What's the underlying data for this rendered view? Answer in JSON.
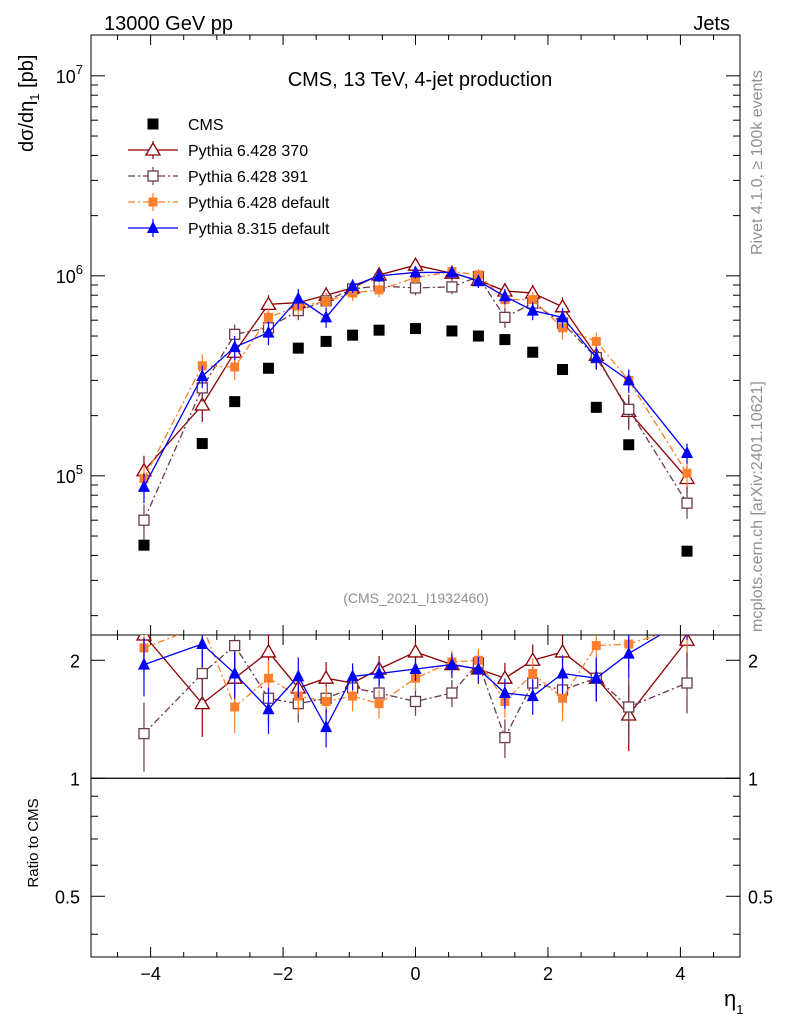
{
  "header": {
    "left": "13000 GeV pp",
    "right": "Jets"
  },
  "side": {
    "rivet": "Rivet 4.1.0, ≥ 100k events",
    "mcplots": "mcplots.cern.ch [arXiv:2401.10621]"
  },
  "chart_data": {
    "type": "scatter",
    "title": "CMS, 13 TeV, 4-jet production",
    "analysis_label": "(CMS_2021_I1932460)",
    "xlabel": "η",
    "xlabel_sub": "1",
    "ylabel": "dσ/dη",
    "ylabel_sub": "1",
    "ylabel_unit": " [pb]",
    "ratio_ylabel": "Ratio to CMS",
    "xlim": [
      -4.9,
      4.9
    ],
    "ylim": [
      16000,
      16000000
    ],
    "ratio_ylim": [
      0.35,
      2.32
    ],
    "x_ticks": [
      -4,
      -2,
      0,
      2,
      4
    ],
    "x_tick_labels": [
      "−4",
      "−2",
      "0",
      "2",
      "4"
    ],
    "y_ticks": [
      100000,
      1000000,
      10000000
    ],
    "y_tick_exponents": [
      "5",
      "6",
      "7"
    ],
    "ratio_ticks": [
      0.5,
      1,
      2
    ],
    "ratio_tick_labels": [
      "0.5",
      "1",
      "2"
    ],
    "x": [
      -4.1,
      -3.22,
      -2.73,
      -2.22,
      -1.77,
      -1.35,
      -0.95,
      -0.55,
      0,
      0.55,
      0.95,
      1.35,
      1.77,
      2.22,
      2.73,
      3.22,
      4.1
    ],
    "series": [
      {
        "name": "CMS",
        "color": "#000000",
        "marker": "square-filled",
        "line": "none",
        "values": [
          45000,
          145000,
          235000,
          345000,
          435000,
          470000,
          505000,
          535000,
          545000,
          530000,
          500000,
          480000,
          415000,
          340000,
          220000,
          143000,
          42000
        ]
      },
      {
        "name": "Pythia 6.428 370",
        "color": "#8b0000",
        "marker": "triangle-open",
        "line": "solid",
        "values": [
          106000,
          226000,
          415000,
          720000,
          735000,
          800000,
          870000,
          1010000,
          1130000,
          1030000,
          950000,
          840000,
          820000,
          700000,
          400000,
          210000,
          97000
        ],
        "errors": [
          20000,
          40000,
          60000,
          80000,
          80000,
          80000,
          80000,
          80000,
          80000,
          80000,
          80000,
          80000,
          80000,
          80000,
          50000,
          40000,
          15000
        ],
        "ratio": [
          2.32,
          1.55,
          1.8,
          2.1,
          1.7,
          1.8,
          1.75,
          1.9,
          2.1,
          1.95,
          1.9,
          1.8,
          2.0,
          2.1,
          1.8,
          1.45,
          2.25
        ]
      },
      {
        "name": "Pythia 6.428 391",
        "color": "#6b3a4f",
        "marker": "square-open",
        "line": "dashdot",
        "values": [
          60000,
          275000,
          510000,
          550000,
          670000,
          750000,
          860000,
          890000,
          870000,
          880000,
          990000,
          620000,
          730000,
          580000,
          390000,
          215000,
          73000
        ],
        "errors": [
          12000,
          40000,
          60000,
          70000,
          70000,
          70000,
          70000,
          70000,
          70000,
          70000,
          70000,
          70000,
          70000,
          70000,
          50000,
          40000,
          12000
        ],
        "ratio": [
          1.3,
          1.85,
          2.18,
          1.6,
          1.55,
          1.6,
          1.7,
          1.65,
          1.57,
          1.65,
          1.97,
          1.27,
          1.75,
          1.68,
          1.8,
          1.52,
          1.75
        ]
      },
      {
        "name": "Pythia 6.428 default",
        "color": "#ff7f2a",
        "marker": "square-filled",
        "line": "dashdot",
        "values": [
          97000,
          355000,
          350000,
          620000,
          705000,
          745000,
          820000,
          850000,
          980000,
          1050000,
          1010000,
          760000,
          760000,
          550000,
          470000,
          300000,
          103000
        ],
        "errors": [
          15000,
          50000,
          50000,
          70000,
          70000,
          70000,
          70000,
          70000,
          70000,
          70000,
          70000,
          70000,
          70000,
          70000,
          50000,
          40000,
          15000
        ],
        "ratio": [
          2.15,
          2.45,
          1.52,
          1.8,
          1.62,
          1.57,
          1.62,
          1.55,
          1.8,
          1.98,
          2.0,
          1.57,
          1.85,
          1.6,
          2.18,
          2.2,
          2.45
        ]
      },
      {
        "name": "Pythia 8.315 default",
        "color": "#0000ff",
        "marker": "triangle-filled",
        "line": "solid",
        "values": [
          88000,
          315000,
          440000,
          520000,
          770000,
          620000,
          890000,
          1000000,
          1040000,
          1040000,
          940000,
          790000,
          670000,
          620000,
          390000,
          300000,
          130000
        ],
        "errors": [
          15000,
          40000,
          60000,
          70000,
          90000,
          70000,
          70000,
          70000,
          70000,
          70000,
          70000,
          70000,
          70000,
          70000,
          50000,
          40000,
          15000
        ],
        "ratio": [
          1.95,
          2.2,
          1.85,
          1.5,
          1.82,
          1.35,
          1.82,
          1.85,
          1.9,
          1.95,
          1.9,
          1.65,
          1.62,
          1.85,
          1.8,
          2.08,
          2.55
        ]
      }
    ]
  }
}
